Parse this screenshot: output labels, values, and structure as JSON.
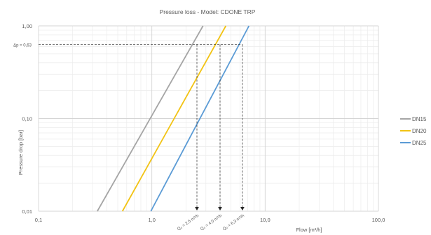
{
  "chart_data": {
    "type": "line",
    "title": "Pressure loss - Model: CDONE TRP",
    "xlabel": "Flow [m³/h]",
    "ylabel": "Pressure drop [bar]",
    "x_scale": "log",
    "y_scale": "log",
    "xlim": [
      0.1,
      100
    ],
    "ylim": [
      0.01,
      1
    ],
    "x_ticks": [
      "0,1",
      "1,0",
      "10,0",
      "100,0"
    ],
    "y_ticks": [
      "0,01",
      "0,10",
      "1,00"
    ],
    "grid": true,
    "legend_position": "right",
    "series": [
      {
        "name": "DN15",
        "color": "#a5a5a5",
        "x": [
          0.33,
          2.83
        ],
        "y": [
          0.01,
          1.0
        ]
      },
      {
        "name": "DN20",
        "color": "#f2c314",
        "x": [
          0.55,
          4.5
        ],
        "y": [
          0.01,
          1.0
        ]
      },
      {
        "name": "DN25",
        "color": "#5b9bd5",
        "x": [
          0.98,
          7.2
        ],
        "y": [
          0.01,
          1.0
        ]
      }
    ],
    "reference_line": {
      "label": "Δp = 0,63",
      "y": 0.63
    },
    "annotations": [
      {
        "label": "Q₀ = 2,5 m³/h",
        "x": 2.5
      },
      {
        "label": "Q₀ = 4,0 m³/h",
        "x": 4.0
      },
      {
        "label": "Q₀ = 6,3 m³/h",
        "x": 6.3
      }
    ]
  }
}
